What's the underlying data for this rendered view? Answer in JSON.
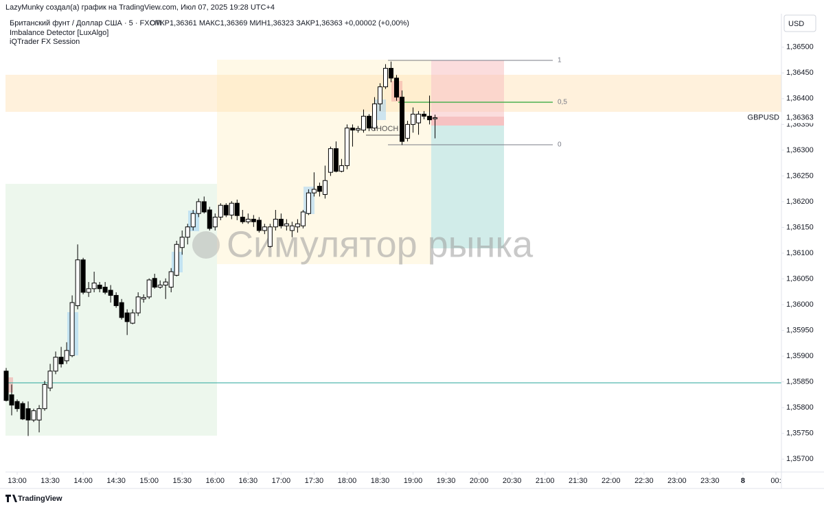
{
  "header": {
    "author_line": "LazyMunky создал(а) график на TradingView.com, Июл 07, 2025 19:28 UTC+4",
    "symbol_line": "Британский фунт / Доллар США · 5 · FXCM",
    "ohlc_line": "ОТКР1,36361 МАКС1,36369 МИН1,36323 ЗАКР1,36363 +0,00002 (+0,00%)",
    "indicators": [
      "Imbalance Detector [LuxAlgo]",
      "iQTrader FX Session"
    ],
    "currency_button": "USD"
  },
  "watermark": "Симулятор рынка",
  "footer": "TradingView",
  "chart_data": {
    "type": "candlestick",
    "x": [
      "12:50",
      "12:55",
      "13:00",
      "13:05",
      "13:10",
      "13:15",
      "13:20",
      "13:25",
      "13:30",
      "13:35",
      "13:40",
      "13:45",
      "13:50",
      "13:55",
      "14:00",
      "14:05",
      "14:10",
      "14:15",
      "14:20",
      "14:25",
      "14:30",
      "14:35",
      "14:40",
      "14:45",
      "14:50",
      "14:55",
      "15:00",
      "15:05",
      "15:10",
      "15:15",
      "15:20",
      "15:25",
      "15:30",
      "15:35",
      "15:40",
      "15:45",
      "15:50",
      "15:55",
      "16:00",
      "16:05",
      "16:10",
      "16:15",
      "16:20",
      "16:25",
      "16:30",
      "16:35",
      "16:40",
      "16:45",
      "16:50",
      "16:55",
      "17:00",
      "17:05",
      "17:10",
      "17:15",
      "17:20",
      "17:25",
      "17:30",
      "17:35",
      "17:40",
      "17:45",
      "17:50",
      "17:55",
      "18:00",
      "18:05",
      "18:10",
      "18:15",
      "18:20",
      "18:25",
      "18:30",
      "18:35",
      "18:40",
      "18:45",
      "18:50",
      "18:55",
      "19:00",
      "19:05",
      "19:10",
      "19:15",
      "19:20"
    ],
    "open": [
      1.35871,
      1.35825,
      1.35812,
      1.35808,
      1.35798,
      1.35776,
      1.35776,
      1.35798,
      1.35838,
      1.35871,
      1.35898,
      1.35891,
      1.35901,
      1.35998,
      1.36087,
      1.36024,
      1.36031,
      1.36038,
      1.36034,
      1.36028,
      1.36018,
      1.36004,
      1.35984,
      1.35964,
      1.35984,
      1.36011,
      1.36015,
      1.36051,
      1.36034,
      1.36038,
      1.36034,
      1.36057,
      1.36111,
      1.36131,
      1.36151,
      1.36177,
      1.362,
      1.36184,
      1.36151,
      1.3617,
      1.36193,
      1.36174,
      1.36197,
      1.3617,
      1.36161,
      1.36166,
      1.36164,
      1.36144,
      1.36113,
      1.36151,
      1.36166,
      1.36153,
      1.36144,
      1.36151,
      1.36153,
      1.36177,
      1.36217,
      1.3623,
      1.36214,
      1.36257,
      1.36303,
      1.36259,
      1.3627,
      1.36343,
      1.36339,
      1.36339,
      1.36366,
      1.36343,
      1.3639,
      1.36423,
      1.36459,
      1.3644,
      1.36403,
      1.36323,
      1.3635,
      1.36353,
      1.3637,
      1.36366,
      1.36361
    ],
    "high": [
      1.35877,
      1.35845,
      1.35816,
      1.35812,
      1.35812,
      1.35798,
      1.35805,
      1.35852,
      1.35885,
      1.35909,
      1.35918,
      1.35927,
      1.36018,
      1.36117,
      1.36091,
      1.36044,
      1.36064,
      1.36044,
      1.36044,
      1.36038,
      1.36024,
      1.36011,
      1.35991,
      1.35991,
      1.36024,
      1.3602,
      1.36051,
      1.3606,
      1.36047,
      1.36051,
      1.36071,
      1.36124,
      1.36144,
      1.36157,
      1.36184,
      1.36206,
      1.3621,
      1.3619,
      1.36177,
      1.36197,
      1.36197,
      1.36201,
      1.36204,
      1.36184,
      1.36177,
      1.36174,
      1.3617,
      1.36157,
      1.36157,
      1.36184,
      1.36177,
      1.36166,
      1.36161,
      1.36166,
      1.36184,
      1.36224,
      1.36257,
      1.36237,
      1.3627,
      1.36307,
      1.36317,
      1.36283,
      1.3635,
      1.3635,
      1.36347,
      1.36379,
      1.3637,
      1.36403,
      1.3643,
      1.36467,
      1.36472,
      1.36446,
      1.36416,
      1.36357,
      1.36383,
      1.36376,
      1.36376,
      1.36406,
      1.36369
    ],
    "low": [
      1.35812,
      1.35785,
      1.35792,
      1.35776,
      1.35745,
      1.35772,
      1.35752,
      1.35794,
      1.35832,
      1.35865,
      1.35878,
      1.35885,
      1.35898,
      1.35991,
      1.3602,
      1.36015,
      1.36024,
      1.36024,
      1.3602,
      1.36004,
      1.35994,
      1.35971,
      1.35941,
      1.35962,
      1.35978,
      1.36004,
      1.36011,
      1.36031,
      1.36031,
      1.36011,
      1.36024,
      1.36055,
      1.36097,
      1.36117,
      1.36144,
      1.3617,
      1.36177,
      1.36144,
      1.36144,
      1.36164,
      1.3617,
      1.36166,
      1.36164,
      1.36157,
      1.36157,
      1.36151,
      1.3614,
      1.36137,
      1.36111,
      1.36144,
      1.36148,
      1.36144,
      1.36131,
      1.3614,
      1.36148,
      1.36174,
      1.3621,
      1.3621,
      1.36206,
      1.3625,
      1.36257,
      1.36257,
      1.36263,
      1.36307,
      1.36334,
      1.36334,
      1.36337,
      1.36339,
      1.36376,
      1.36419,
      1.36432,
      1.36396,
      1.3631,
      1.36317,
      1.36334,
      1.3633,
      1.3636,
      1.3635,
      1.36323
    ],
    "close": [
      1.35814,
      1.35805,
      1.35798,
      1.35778,
      1.35776,
      1.35794,
      1.35798,
      1.35845,
      1.35871,
      1.35898,
      1.35885,
      1.35911,
      1.36004,
      1.36087,
      1.36024,
      1.36031,
      1.36042,
      1.36031,
      1.36024,
      1.36018,
      1.35998,
      1.35975,
      1.35967,
      1.35984,
      1.36015,
      1.36014,
      1.36048,
      1.36034,
      1.36038,
      1.36044,
      1.36064,
      1.36117,
      1.36131,
      1.36151,
      1.36177,
      1.362,
      1.3618,
      1.36148,
      1.3617,
      1.36193,
      1.36174,
      1.36197,
      1.36173,
      1.36161,
      1.36166,
      1.36161,
      1.36144,
      1.36151,
      1.36151,
      1.36166,
      1.36153,
      1.36157,
      1.36153,
      1.36157,
      1.3618,
      1.36217,
      1.36224,
      1.3622,
      1.36241,
      1.36303,
      1.36259,
      1.3627,
      1.36343,
      1.36339,
      1.36342,
      1.36366,
      1.36343,
      1.3639,
      1.36423,
      1.36459,
      1.3644,
      1.36403,
      1.36317,
      1.3635,
      1.3637,
      1.3637,
      1.36366,
      1.36359,
      1.36363
    ],
    "up_color": "#ffffff",
    "down_color": "#000000",
    "wick_color": "#000000",
    "xlim": [
      "12:50",
      "00:30"
    ],
    "xticks": [
      "13:00",
      "13:30",
      "14:00",
      "14:30",
      "15:00",
      "15:30",
      "16:00",
      "16:30",
      "17:00",
      "17:30",
      "18:00",
      "18:30",
      "19:00",
      "19:30",
      "20:00",
      "20:30",
      "21:00",
      "21:30",
      "22:00",
      "22:30",
      "23:00",
      "23:30",
      {
        "value": "00:00",
        "label": "8"
      },
      {
        "value": "00:30",
        "label": "00:"
      }
    ],
    "ylim": [
      1.35675,
      1.36565
    ],
    "yticks": [
      {
        "value": 1.365,
        "label": "1,36500"
      },
      {
        "value": 1.3645,
        "label": "1,36450"
      },
      {
        "value": 1.364,
        "label": "1,36400"
      },
      {
        "value": 1.3635,
        "label": "1,36350"
      },
      {
        "value": 1.363,
        "label": "1,36300"
      },
      {
        "value": 1.3625,
        "label": "1,36250"
      },
      {
        "value": 1.362,
        "label": "1,36200"
      },
      {
        "value": 1.3615,
        "label": "1,36150"
      },
      {
        "value": 1.361,
        "label": "1,36100"
      },
      {
        "value": 1.3605,
        "label": "1,36050"
      },
      {
        "value": 1.36,
        "label": "1,36000"
      },
      {
        "value": 1.3595,
        "label": "1,35950"
      },
      {
        "value": 1.359,
        "label": "1,35900"
      },
      {
        "value": 1.3585,
        "label": "1,35850"
      },
      {
        "value": 1.358,
        "label": "1,35800"
      },
      {
        "value": 1.3575,
        "label": "1,35750"
      },
      {
        "value": 1.357,
        "label": "1,35700"
      }
    ],
    "grid": false,
    "last_price": {
      "value": 1.36363,
      "label": "1,36363"
    },
    "symbol_label": "GBPUSD",
    "annotations": [
      "1",
      "0,5",
      "0",
      "CHOCH"
    ]
  }
}
